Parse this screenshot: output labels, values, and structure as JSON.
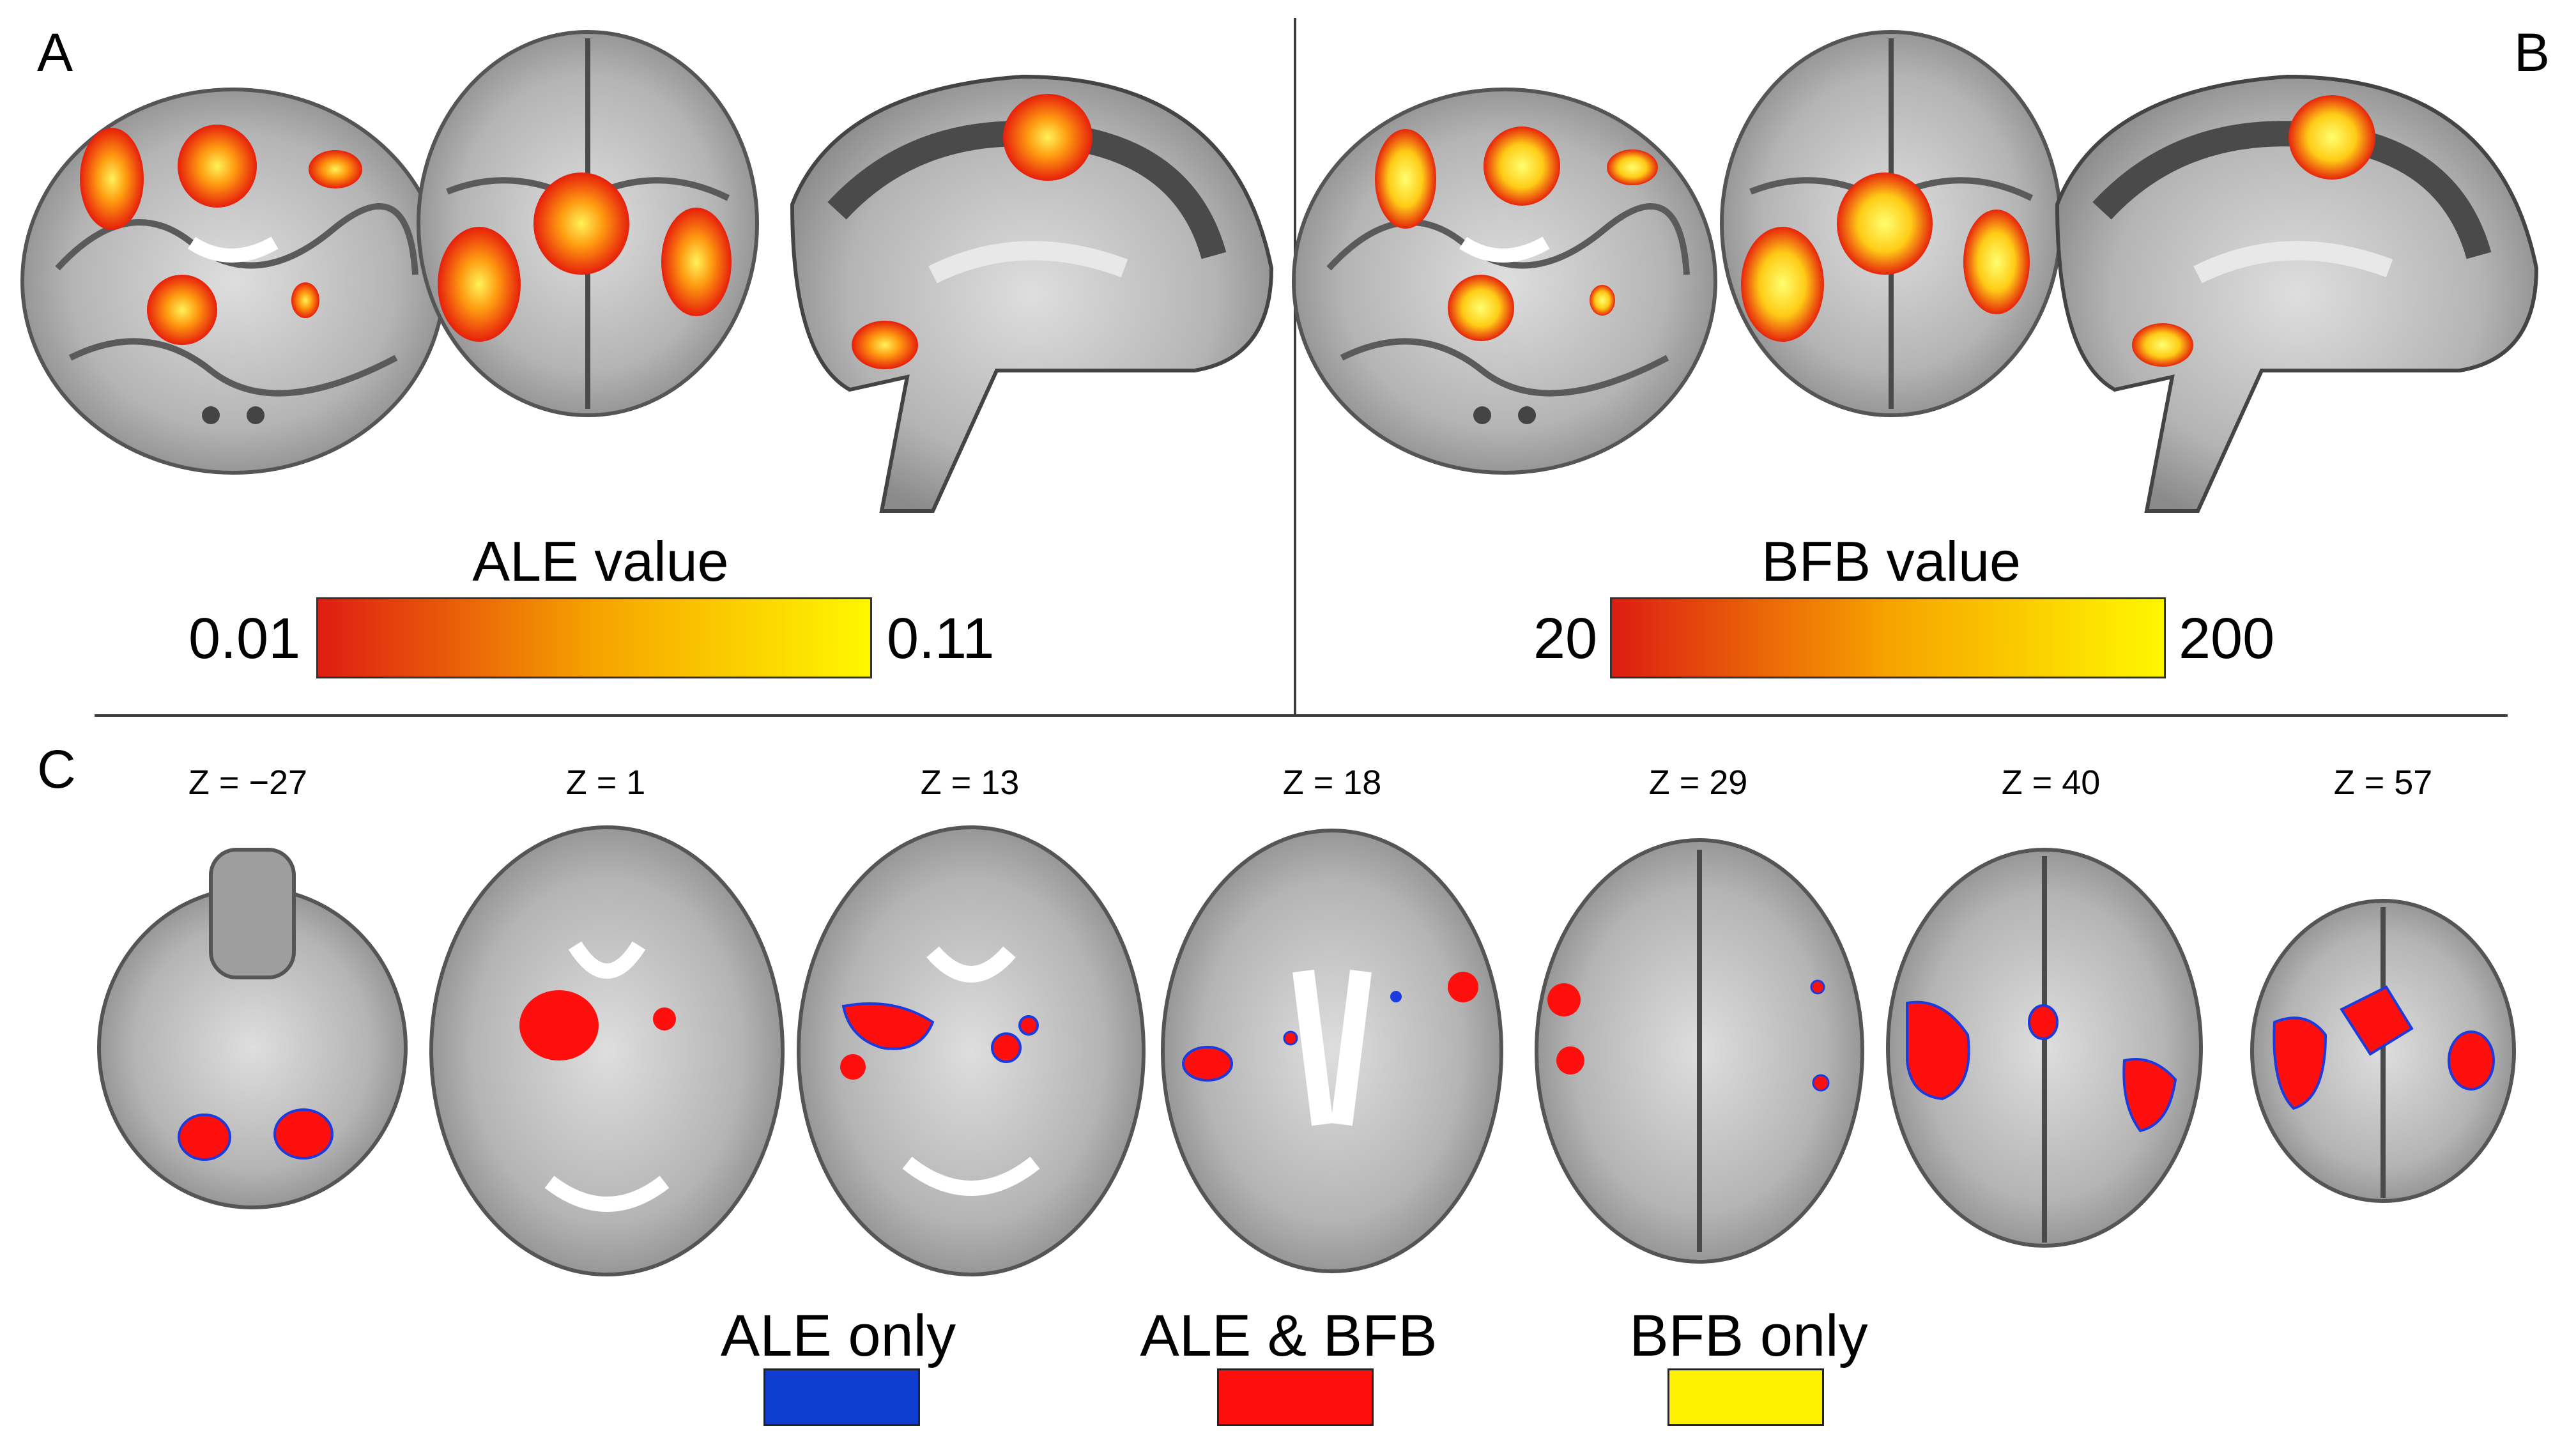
{
  "panels": {
    "a": {
      "letter": "A"
    },
    "b": {
      "letter": "B"
    },
    "c": {
      "letter": "C"
    }
  },
  "colorbars": {
    "ale": {
      "title": "ALE value",
      "min": "0.01",
      "max": "0.11",
      "gradient": [
        "#dd1c12",
        "#f6a300",
        "#fff700"
      ]
    },
    "bfb": {
      "title": "BFB value",
      "min": "20",
      "max": "200",
      "gradient": [
        "#dd1c12",
        "#f6a300",
        "#fff700"
      ]
    }
  },
  "slices": [
    {
      "label": "Z = −27"
    },
    {
      "label": "Z = 1"
    },
    {
      "label": "Z = 13"
    },
    {
      "label": "Z = 18"
    },
    {
      "label": "Z = 29"
    },
    {
      "label": "Z = 40"
    },
    {
      "label": "Z = 57"
    }
  ],
  "legend": [
    {
      "label": "ALE only",
      "color": "#0f3dd0"
    },
    {
      "label": "ALE & BFB",
      "color": "#ff0e0e"
    },
    {
      "label": "BFB only",
      "color": "#fff200"
    }
  ],
  "colors": {
    "brain_gray": "#b9b9b9",
    "brain_dark": "#565656",
    "line": "#3c3c3c"
  }
}
